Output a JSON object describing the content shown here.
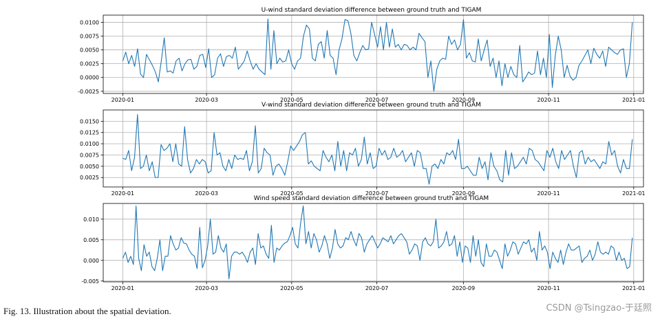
{
  "caption": "Fig. 13.   Illustration about the spatial deviation.",
  "watermark": "CSDN @Tsingzao-于廷照",
  "line_color": "#1f77b4",
  "grid_color": "#b0b0b0",
  "chart_data": [
    {
      "type": "line",
      "title": "U-wind standard deviation difference between ground truth and TIGAM",
      "xlabel": "",
      "ylabel": "",
      "grid": true,
      "xlim": [
        "2019-12-18",
        "2021-01-08"
      ],
      "ylim": [
        -0.0029,
        0.0113
      ],
      "xticks": [
        "2020-01",
        "2020-03",
        "2020-05",
        "2020-07",
        "2020-09",
        "2020-11",
        "2021-01"
      ],
      "yticks": [
        "-0.0025",
        "0.0000",
        "0.0025",
        "0.0050",
        "0.0075",
        "0.0100"
      ],
      "ytick_values": [
        -0.0025,
        0.0,
        0.0025,
        0.005,
        0.0075,
        0.01
      ],
      "x_start": "2020-01-01",
      "x_end": "2020-12-31",
      "values": [
        0.003,
        0.0046,
        0.0025,
        0.004,
        0.002,
        0.0052,
        0.0006,
        0.0,
        0.0042,
        0.0032,
        0.0022,
        0.001,
        -0.0008,
        0.003,
        0.0072,
        0.001,
        0.0012,
        0.0008,
        0.003,
        0.0035,
        0.0012,
        0.0025,
        0.0032,
        0.0033,
        0.0015,
        0.002,
        0.004,
        0.0042,
        0.0018,
        0.0052,
        0.0,
        0.0005,
        0.0035,
        0.0043,
        0.002,
        0.0038,
        0.004,
        0.0035,
        0.0055,
        0.0015,
        0.0022,
        0.003,
        0.0048,
        0.003,
        0.0015,
        0.0025,
        0.0015,
        0.001,
        0.0005,
        0.0106,
        0.0015,
        0.0085,
        0.0025,
        0.0035,
        0.0028,
        0.003,
        0.005,
        0.0025,
        0.0015,
        0.003,
        0.0035,
        0.0075,
        0.0095,
        0.0088,
        0.0035,
        0.003,
        0.006,
        0.0065,
        0.0035,
        0.0085,
        0.004,
        0.0035,
        0.0005,
        0.005,
        0.007,
        0.0105,
        0.0103,
        0.008,
        0.004,
        0.003,
        0.0045,
        0.0058,
        0.005,
        0.0052,
        0.01,
        0.0078,
        0.0055,
        0.0092,
        0.005,
        0.01,
        0.0055,
        0.0088,
        0.0055,
        0.006,
        0.005,
        0.006,
        0.0058,
        0.005,
        0.0055,
        0.005,
        0.008,
        0.0072,
        0.0065,
        0.0,
        0.003,
        -0.0025,
        0.0015,
        0.003,
        0.0035,
        0.0033,
        0.0075,
        0.006,
        0.0068,
        0.005,
        0.006,
        0.0105,
        0.0035,
        0.0045,
        0.003,
        0.0028,
        0.007,
        0.003,
        0.005,
        0.0068,
        0.002,
        0.0035,
        0.0,
        0.003,
        -0.0015,
        0.0025,
        0.0,
        0.002,
        0.0005,
        0.0,
        0.0058,
        -0.0008,
        0.0,
        0.001,
        0.0005,
        0.0008,
        0.0048,
        0.0005,
        0.0035,
        0.0,
        0.0078,
        -0.0018,
        0.004,
        0.0075,
        0.005,
        0.0,
        0.0022,
        0.0002,
        -0.0005,
        0.0,
        0.0022,
        0.003,
        0.004,
        0.005,
        0.0025,
        0.0053,
        0.0042,
        0.0035,
        0.0048,
        0.002,
        0.0055,
        0.005,
        0.0045,
        0.0042,
        0.005,
        0.0052,
        0.0,
        0.0025,
        0.01
      ],
      "dates_first": [
        "2020-01-01",
        "2020-01-03",
        "2020-01-05",
        "2020-01-07",
        "2020-01-09",
        "2020-01-11",
        "2020-01-13",
        "2020-01-15",
        "2020-01-17",
        "2020-01-19"
      ]
    },
    {
      "type": "line",
      "title": "V-wind standard deviation difference between ground truth and TIGAM",
      "xlabel": "",
      "ylabel": "",
      "grid": true,
      "xlim": [
        "2019-12-18",
        "2021-01-08"
      ],
      "ylim": [
        0.0004,
        0.0175
      ],
      "xticks": [
        "2020-01",
        "2020-03",
        "2020-05",
        "2020-07",
        "2020-09",
        "2020-11",
        "2021-01"
      ],
      "yticks": [
        "0.0025",
        "0.0050",
        "0.0075",
        "0.0100",
        "0.0125",
        "0.0150"
      ],
      "ytick_values": [
        0.0025,
        0.005,
        0.0075,
        0.01,
        0.0125,
        0.015
      ],
      "x_start": "2020-01-01",
      "x_end": "2020-12-31",
      "values": [
        0.0068,
        0.0065,
        0.0085,
        0.004,
        0.007,
        0.0165,
        0.0045,
        0.005,
        0.0075,
        0.004,
        0.006,
        0.0025,
        0.0025,
        0.0098,
        0.0085,
        0.009,
        0.01,
        0.006,
        0.01,
        0.0055,
        0.005,
        0.0138,
        0.0065,
        0.0035,
        0.0045,
        0.0065,
        0.0055,
        0.0065,
        0.006,
        0.0035,
        0.004,
        0.0125,
        0.0075,
        0.008,
        0.005,
        0.004,
        0.0065,
        0.0045,
        0.0075,
        0.0065,
        0.0068,
        0.0065,
        0.0085,
        0.004,
        0.006,
        0.014,
        0.0035,
        0.0045,
        0.009,
        0.008,
        0.0075,
        0.003,
        0.005,
        0.0055,
        0.0045,
        0.003,
        0.006,
        0.0095,
        0.0085,
        0.0095,
        0.0105,
        0.012,
        0.0125,
        0.0055,
        0.0062,
        0.005,
        0.0045,
        0.004,
        0.0085,
        0.007,
        0.006,
        0.0075,
        0.004,
        0.0105,
        0.005,
        0.0085,
        0.004,
        0.008,
        0.0075,
        0.009,
        0.005,
        0.0065,
        0.0115,
        0.0055,
        0.008,
        0.0045,
        0.005,
        0.009,
        0.0075,
        0.0085,
        0.0065,
        0.007,
        0.009,
        0.007,
        0.0075,
        0.0085,
        0.006,
        0.007,
        0.008,
        0.005,
        0.0085,
        0.008,
        0.0045,
        0.0045,
        0.001,
        0.005,
        0.0055,
        0.0045,
        0.0065,
        0.0055,
        0.008,
        0.0075,
        0.0085,
        0.0065,
        0.011,
        0.0045,
        0.0045,
        0.005,
        0.004,
        0.003,
        0.003,
        0.007,
        0.0045,
        0.006,
        0.002,
        0.008,
        0.005,
        0.004,
        0.002,
        0.0015,
        0.0085,
        0.003,
        0.008,
        0.0045,
        0.005,
        0.006,
        0.007,
        0.0055,
        0.009,
        0.0085,
        0.0065,
        0.006,
        0.005,
        0.004,
        0.0085,
        0.007,
        0.009,
        0.006,
        0.0045,
        0.0085,
        0.0065,
        0.0075,
        0.0085,
        0.005,
        0.0025,
        0.008,
        0.0085,
        0.0055,
        0.007,
        0.006,
        0.0065,
        0.0055,
        0.0045,
        0.006,
        0.0055,
        0.0105,
        0.0075,
        0.0085,
        0.005,
        0.0035,
        0.0065,
        0.0045,
        0.0045,
        0.011
      ]
    },
    {
      "type": "line",
      "title": "Wind speed standard deviation difference between ground truth and TIGAM",
      "xlabel": "",
      "ylabel": "",
      "grid": true,
      "xlim": [
        "2019-12-18",
        "2021-01-08"
      ],
      "ylim": [
        -0.0052,
        0.0138
      ],
      "xticks": [
        "2020-01",
        "2020-03",
        "2020-05",
        "2020-07",
        "2020-09",
        "2020-11",
        "2021-01"
      ],
      "yticks": [
        "-0.005",
        "0.000",
        "0.005",
        "0.010"
      ],
      "ytick_values": [
        -0.005,
        0.0,
        0.005,
        0.01
      ],
      "x_start": "2020-01-01",
      "x_end": "2020-12-31",
      "values": [
        0.0005,
        0.002,
        -0.0005,
        0.001,
        -0.001,
        0.0132,
        0.0005,
        -0.0025,
        0.0038,
        0.001,
        0.002,
        -0.0015,
        -0.0025,
        0.0005,
        0.005,
        -0.0025,
        0.001,
        0.001,
        0.006,
        0.004,
        0.0025,
        0.003,
        0.0055,
        0.0042,
        0.004,
        0.0025,
        0.0015,
        0.001,
        -0.002,
        0.008,
        -0.0018,
        0.0,
        0.0035,
        0.01,
        0.0015,
        0.002,
        0.006,
        0.003,
        0.002,
        0.004,
        -0.0045,
        0.001,
        0.002,
        0.002,
        0.0015,
        0.002,
        0.001,
        -0.0005,
        0.002,
        0.003,
        -0.001,
        0.0065,
        0.003,
        0.0035,
        0.0015,
        0.0005,
        0.0085,
        -0.0005,
        0.003,
        0.0025,
        0.0035,
        0.0042,
        0.0045,
        0.006,
        0.008,
        0.004,
        0.003,
        0.009,
        0.0132,
        0.004,
        0.007,
        0.003,
        0.0065,
        0.005,
        0.002,
        0.0035,
        0.006,
        0.004,
        0.0005,
        0.003,
        0.0075,
        0.004,
        0.003,
        0.0035,
        0.0055,
        0.005,
        0.007,
        0.005,
        0.0035,
        0.0065,
        0.0055,
        0.002,
        0.004,
        0.005,
        0.006,
        0.0045,
        0.003,
        0.004,
        0.0055,
        0.005,
        0.0045,
        0.006,
        0.004,
        0.005,
        0.006,
        0.0065,
        0.0055,
        0.0045,
        0.0015,
        0.0025,
        0.004,
        0.0035,
        0.0,
        0.0045,
        0.0055,
        0.004,
        0.0035,
        0.0045,
        0.01,
        0.003,
        0.0035,
        0.0045,
        0.007,
        0.0035,
        0.004,
        0.006,
        0.001,
        0.0045,
        -0.0005,
        0.0035,
        0.003,
        -0.0005,
        0.006,
        0.001,
        0.005,
        -0.0005,
        -0.0015,
        0.004,
        0.001,
        0.001,
        0.0025,
        0.002,
        0.0,
        -0.002,
        0.004,
        0.001,
        0.0025,
        0.0045,
        0.004,
        0.0015,
        0.003,
        0.0045,
        0.004,
        0.005,
        0.002,
        0.003,
        0.0,
        0.007,
        0.0025,
        0.0035,
        0.002,
        -0.002,
        0.002,
        0.0005,
        -0.0005,
        0.0025,
        -0.001,
        0.002,
        0.004,
        0.0025,
        0.0025,
        0.003,
        0.0035,
        -0.0005,
        0.0005,
        0.001,
        0.0025,
        0.0,
        0.0015,
        0.0045,
        0.002,
        0.0015,
        0.002,
        0.0015,
        0.0035,
        0.003,
        0.0,
        0.002,
        0.0,
        0.0005,
        -0.002,
        -0.0015,
        0.0055
      ]
    }
  ]
}
